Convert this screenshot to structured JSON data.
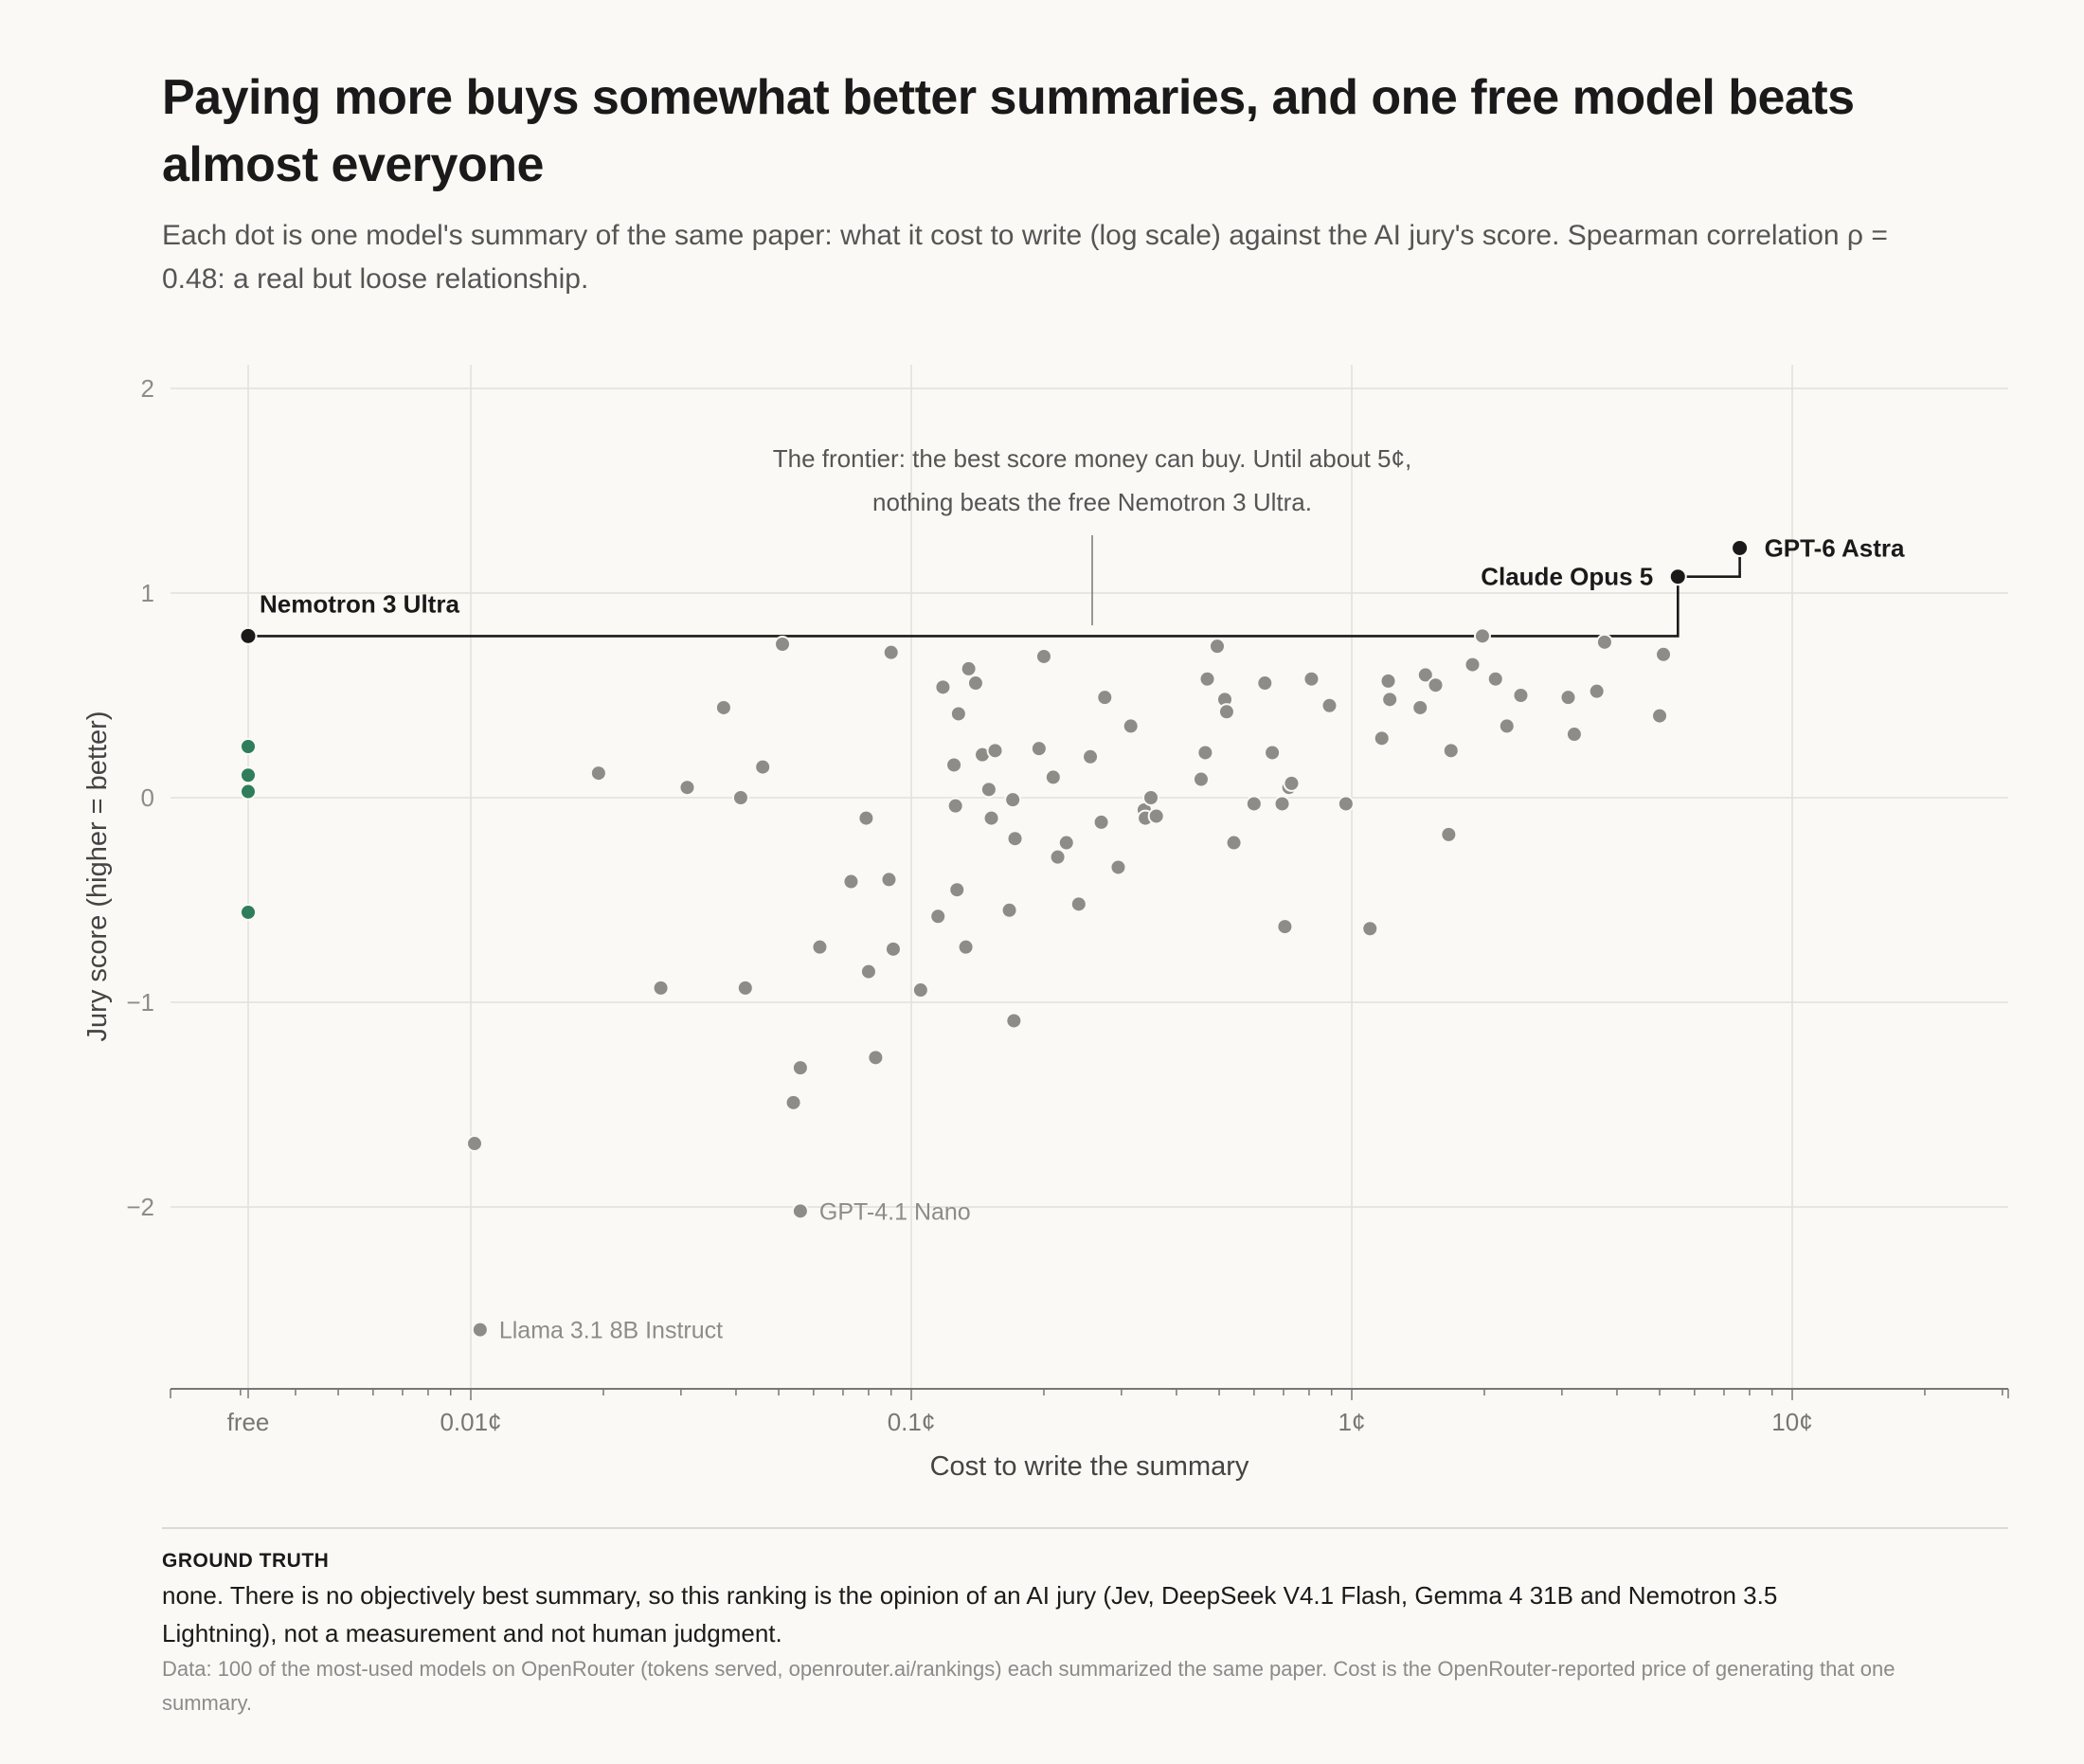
{
  "title": "Paying more buys somewhat better summaries, and one free model beats almost everyone",
  "subtitle": "Each dot is one model's summary of the same paper: what it cost to write (log scale) against the AI jury's score. Spearman correlation ρ = 0.48: a real but loose relationship.",
  "ground_truth": {
    "heading": "GROUND TRUTH",
    "text": "none. There is no objectively best summary, so this ranking is the opinion of an AI jury (Jev, DeepSeek V4.1 Flash, Gemma 4 31B and Nemotron 3.5 Lightning), not a measurement and not human judgment."
  },
  "source_note": "Data: 100 of the most-used models on OpenRouter (tokens served, openrouter.ai/rankings) each summarized the same paper. Cost is the OpenRouter-reported price of generating that one summary.",
  "colors": {
    "background": "#faf9f5",
    "dot": "#8e8c86",
    "free_dot": "#2f7d5a",
    "highlight": "#1a1a1a",
    "grid": "#e2e0d9"
  },
  "chart_data": {
    "type": "scatter",
    "xlabel": "Cost to write the summary",
    "ylabel": "Jury score (higher = better)",
    "x_scale": "log",
    "x_unit": "¢",
    "xlim": [
      0.0015,
      30
    ],
    "ylim": [
      -2.9,
      2.1
    ],
    "x_ticks": [
      {
        "label": "free",
        "value": "free"
      },
      {
        "label": "0.01¢",
        "value": 0.01
      },
      {
        "label": "0.1¢",
        "value": 0.1
      },
      {
        "label": "1¢",
        "value": 1
      },
      {
        "label": "10¢",
        "value": 10
      }
    ],
    "y_ticks": [
      {
        "label": "2",
        "value": 2
      },
      {
        "label": "1",
        "value": 1
      },
      {
        "label": "0",
        "value": 0
      },
      {
        "label": "−1",
        "value": -1
      },
      {
        "label": "−2",
        "value": -2
      }
    ],
    "grid": true,
    "frontier": {
      "annotation": "The frontier: the best score money can buy. Until about 5¢, nothing beats the free Nemotron 3 Ultra.",
      "annotation_lines": [
        "The frontier: the best score money can buy. Until about 5¢,",
        "nothing beats the free Nemotron 3 Ultra."
      ],
      "steps": [
        {
          "x": "free",
          "y": 0.79
        },
        {
          "x": 5.5,
          "y": 0.79
        },
        {
          "x": 5.5,
          "y": 1.08
        },
        {
          "x": 7.6,
          "y": 1.08
        },
        {
          "x": 7.6,
          "y": 1.22
        }
      ]
    },
    "highlighted": [
      {
        "label": "Nemotron 3 Ultra",
        "x": "free",
        "y": 0.79
      },
      {
        "label": "Claude Opus 5",
        "x": 5.5,
        "y": 1.08
      },
      {
        "label": "GPT-6 Astra",
        "x": 7.6,
        "y": 1.22
      }
    ],
    "labeled": [
      {
        "label": "GPT-4.1 Nano",
        "x": 0.056,
        "y": -2.02
      },
      {
        "label": "Llama 3.1 8B Instruct",
        "x": 0.0105,
        "y": -2.6
      }
    ],
    "free_points": [
      0.25,
      0.11,
      0.03,
      -0.56
    ],
    "points": [
      {
        "x": 0.0102,
        "y": -1.69
      },
      {
        "x": 0.0195,
        "y": 0.12
      },
      {
        "x": 0.027,
        "y": -0.93
      },
      {
        "x": 0.031,
        "y": 0.05
      },
      {
        "x": 0.0375,
        "y": 0.44
      },
      {
        "x": 0.041,
        "y": 0.0
      },
      {
        "x": 0.042,
        "y": -0.93
      },
      {
        "x": 0.046,
        "y": 0.15
      },
      {
        "x": 0.051,
        "y": 0.75
      },
      {
        "x": 0.054,
        "y": -1.49
      },
      {
        "x": 0.056,
        "y": -1.32
      },
      {
        "x": 0.062,
        "y": -0.73
      },
      {
        "x": 0.073,
        "y": -0.41
      },
      {
        "x": 0.079,
        "y": -0.1
      },
      {
        "x": 0.08,
        "y": -0.85
      },
      {
        "x": 0.083,
        "y": -1.27
      },
      {
        "x": 0.089,
        "y": -0.4
      },
      {
        "x": 0.09,
        "y": 0.71
      },
      {
        "x": 0.091,
        "y": -0.74
      },
      {
        "x": 0.105,
        "y": -0.94
      },
      {
        "x": 0.115,
        "y": -0.58
      },
      {
        "x": 0.118,
        "y": 0.54
      },
      {
        "x": 0.125,
        "y": 0.16
      },
      {
        "x": 0.126,
        "y": -0.04
      },
      {
        "x": 0.127,
        "y": -0.45
      },
      {
        "x": 0.128,
        "y": 0.41
      },
      {
        "x": 0.133,
        "y": -0.73
      },
      {
        "x": 0.135,
        "y": 0.63
      },
      {
        "x": 0.14,
        "y": 0.56
      },
      {
        "x": 0.145,
        "y": 0.21
      },
      {
        "x": 0.15,
        "y": 0.04
      },
      {
        "x": 0.152,
        "y": -0.1
      },
      {
        "x": 0.155,
        "y": 0.23
      },
      {
        "x": 0.167,
        "y": -0.55
      },
      {
        "x": 0.17,
        "y": -0.01
      },
      {
        "x": 0.171,
        "y": -1.09
      },
      {
        "x": 0.172,
        "y": -0.2
      },
      {
        "x": 0.195,
        "y": 0.24
      },
      {
        "x": 0.2,
        "y": 0.69
      },
      {
        "x": 0.21,
        "y": 0.1
      },
      {
        "x": 0.215,
        "y": -0.29
      },
      {
        "x": 0.225,
        "y": -0.22
      },
      {
        "x": 0.24,
        "y": -0.52
      },
      {
        "x": 0.255,
        "y": 0.2
      },
      {
        "x": 0.27,
        "y": -0.12
      },
      {
        "x": 0.275,
        "y": 0.49
      },
      {
        "x": 0.295,
        "y": -0.34
      },
      {
        "x": 0.315,
        "y": 0.35
      },
      {
        "x": 0.338,
        "y": -0.06
      },
      {
        "x": 0.34,
        "y": -0.1
      },
      {
        "x": 0.35,
        "y": 0.0
      },
      {
        "x": 0.36,
        "y": -0.09
      },
      {
        "x": 0.455,
        "y": 0.09
      },
      {
        "x": 0.465,
        "y": 0.22
      },
      {
        "x": 0.47,
        "y": 0.58
      },
      {
        "x": 0.495,
        "y": 0.74
      },
      {
        "x": 0.515,
        "y": 0.48
      },
      {
        "x": 0.52,
        "y": 0.42
      },
      {
        "x": 0.54,
        "y": -0.22
      },
      {
        "x": 0.6,
        "y": -0.03
      },
      {
        "x": 0.635,
        "y": 0.56
      },
      {
        "x": 0.66,
        "y": 0.22
      },
      {
        "x": 0.695,
        "y": -0.03
      },
      {
        "x": 0.705,
        "y": -0.63
      },
      {
        "x": 0.72,
        "y": 0.05
      },
      {
        "x": 0.73,
        "y": 0.07
      },
      {
        "x": 0.81,
        "y": 0.58
      },
      {
        "x": 0.89,
        "y": 0.45
      },
      {
        "x": 0.97,
        "y": -0.03
      },
      {
        "x": 1.1,
        "y": -0.64
      },
      {
        "x": 1.17,
        "y": 0.29
      },
      {
        "x": 1.21,
        "y": 0.57
      },
      {
        "x": 1.22,
        "y": 0.48
      },
      {
        "x": 1.43,
        "y": 0.44
      },
      {
        "x": 1.47,
        "y": 0.6
      },
      {
        "x": 1.55,
        "y": 0.55
      },
      {
        "x": 1.66,
        "y": -0.18
      },
      {
        "x": 1.68,
        "y": 0.23
      },
      {
        "x": 1.88,
        "y": 0.65
      },
      {
        "x": 1.98,
        "y": 0.79
      },
      {
        "x": 2.12,
        "y": 0.58
      },
      {
        "x": 2.25,
        "y": 0.35
      },
      {
        "x": 2.42,
        "y": 0.5
      },
      {
        "x": 3.1,
        "y": 0.49
      },
      {
        "x": 3.2,
        "y": 0.31
      },
      {
        "x": 3.6,
        "y": 0.52
      },
      {
        "x": 3.75,
        "y": 0.76
      },
      {
        "x": 5.0,
        "y": 0.4
      },
      {
        "x": 5.1,
        "y": 0.7
      }
    ]
  }
}
